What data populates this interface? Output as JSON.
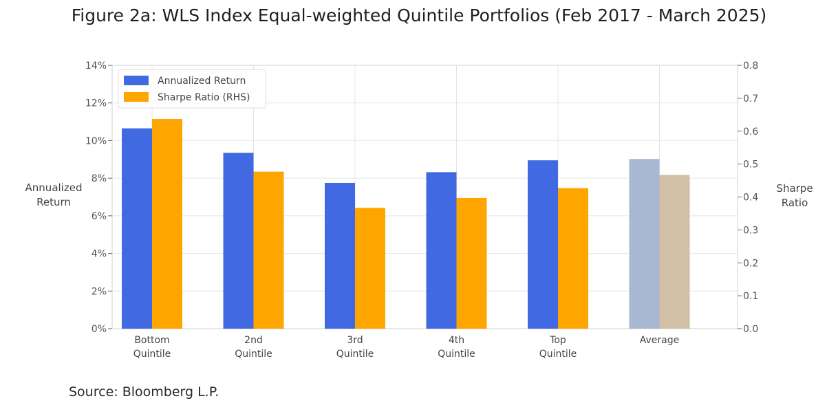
{
  "title": "Figure 2a: WLS Index Equal-weighted Quintile Portfolios (Feb 2017 - March 2025)",
  "source": "Source: Bloomberg L.P.",
  "chart_data": {
    "type": "bar",
    "categories": [
      [
        "Bottom",
        "Quintile"
      ],
      [
        "2nd",
        "Quintile"
      ],
      [
        "3rd",
        "Quintile"
      ],
      [
        "4th",
        "Quintile"
      ],
      [
        "Top",
        "Quintile"
      ],
      [
        "Average"
      ]
    ],
    "series": [
      {
        "name": "Annualized Return",
        "axis": "left",
        "values": [
          0.1065,
          0.0935,
          0.0775,
          0.0832,
          0.0895,
          0.0902
        ],
        "color": "#4169E1",
        "last_color": "#A9B8D2"
      },
      {
        "name": "Sharpe Ratio (RHS)",
        "axis": "right",
        "values": [
          0.637,
          0.477,
          0.367,
          0.397,
          0.427,
          0.467
        ],
        "color": "#FFA500",
        "last_color": "#D2C0A6"
      }
    ],
    "y_left": {
      "label": [
        "Annualized",
        "Return"
      ],
      "ylim": [
        0,
        0.14
      ],
      "ticks": [
        0,
        0.02,
        0.04,
        0.06,
        0.08,
        0.1,
        0.12,
        0.14
      ],
      "tick_labels": [
        "0%",
        "2%",
        "4%",
        "6%",
        "8%",
        "10%",
        "12%",
        "14%"
      ]
    },
    "y_right": {
      "label": [
        "Sharpe",
        "Ratio"
      ],
      "ylim": [
        0,
        0.8
      ],
      "ticks": [
        0,
        0.1,
        0.2,
        0.3,
        0.4,
        0.5,
        0.6,
        0.7,
        0.8
      ],
      "tick_labels": [
        "0.0",
        "0.1",
        "0.2",
        "0.3",
        "0.4",
        "0.5",
        "0.6",
        "0.7",
        "0.8"
      ]
    },
    "grid": true,
    "legend_position": "top-left"
  }
}
